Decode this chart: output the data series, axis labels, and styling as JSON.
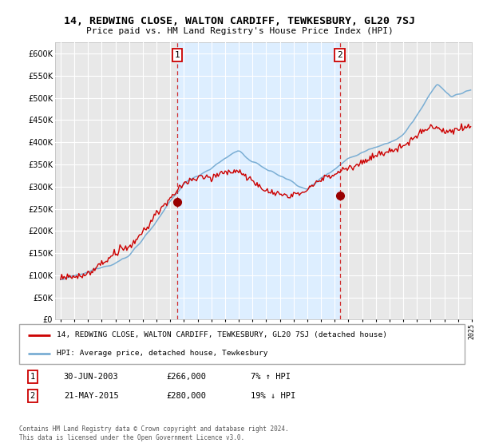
{
  "title": "14, REDWING CLOSE, WALTON CARDIFF, TEWKESBURY, GL20 7SJ",
  "subtitle": "Price paid vs. HM Land Registry's House Price Index (HPI)",
  "footer": "Contains HM Land Registry data © Crown copyright and database right 2024.\nThis data is licensed under the Open Government Licence v3.0.",
  "legend_line1": "14, REDWING CLOSE, WALTON CARDIFF, TEWKESBURY, GL20 7SJ (detached house)",
  "legend_line2": "HPI: Average price, detached house, Tewkesbury",
  "sale1_date": "30-JUN-2003",
  "sale1_price": "£266,000",
  "sale1_hpi": "7% ↑ HPI",
  "sale2_date": "21-MAY-2015",
  "sale2_price": "£280,000",
  "sale2_hpi": "19% ↓ HPI",
  "sale1_x": 2003.5,
  "sale1_y": 266000,
  "sale2_x": 2015.37,
  "sale2_y": 280000,
  "ylim": [
    0,
    625000
  ],
  "xlim_left": 1994.6,
  "xlim_right": 2025.0,
  "yticks": [
    0,
    50000,
    100000,
    150000,
    200000,
    250000,
    300000,
    350000,
    400000,
    450000,
    500000,
    550000,
    600000
  ],
  "background_color": "#ffffff",
  "plot_bg_color": "#e8e8e8",
  "shade_color": "#ddeeff",
  "grid_color": "#ffffff",
  "red_color": "#cc0000",
  "blue_color": "#7aaed4",
  "marker_color": "#990000"
}
